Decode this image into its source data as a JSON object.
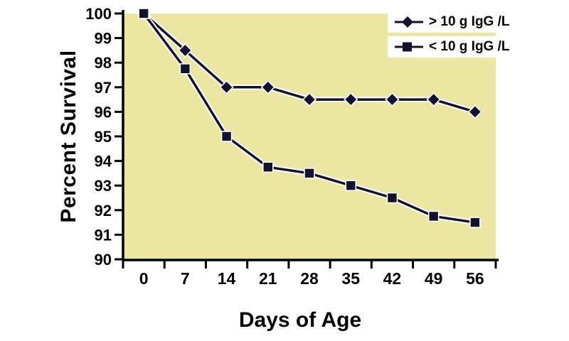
{
  "chart_data": {
    "type": "line",
    "title": "",
    "xlabel": "Days of Age",
    "ylabel": "Percent Survival",
    "x_categories": [
      0,
      7,
      14,
      21,
      28,
      35,
      42,
      49,
      56
    ],
    "ylim": [
      90,
      100
    ],
    "ytick_step": 1,
    "grid": false,
    "legend_position": "top-right",
    "plot_bg_color": "#ebe6a2",
    "series_color": "#12122d",
    "axis_color": "#000000",
    "series": [
      {
        "name": "> 10 g IgG /L",
        "marker": "diamond",
        "values": [
          100,
          98.5,
          97,
          97,
          96.5,
          96.5,
          96.5,
          96.5,
          96
        ]
      },
      {
        "name": "< 10 g IgG /L",
        "marker": "square",
        "values": [
          100,
          97.75,
          95,
          93.75,
          93.5,
          93,
          92.5,
          91.75,
          91.5
        ]
      }
    ]
  }
}
